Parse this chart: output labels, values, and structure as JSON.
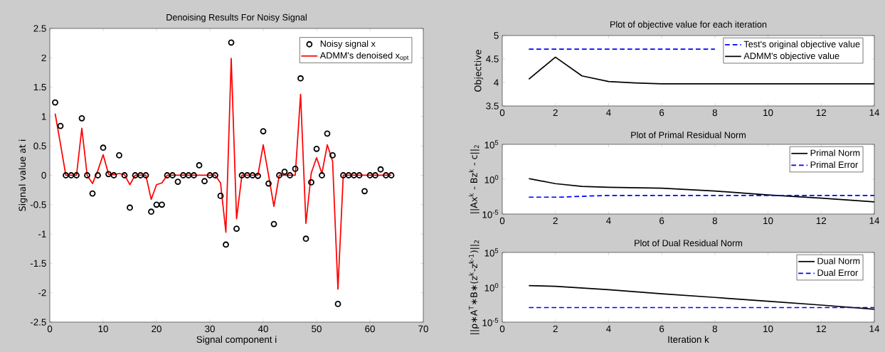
{
  "chart_data": [
    {
      "type": "line",
      "title": "Denoising Results For Noisy Signal",
      "xlabel": "Signal component i",
      "ylabel": "Signal value at i",
      "x": [
        1,
        2,
        3,
        4,
        5,
        6,
        7,
        8,
        9,
        10,
        11,
        12,
        13,
        14,
        15,
        16,
        17,
        18,
        19,
        20,
        21,
        22,
        23,
        24,
        25,
        26,
        27,
        28,
        29,
        30,
        31,
        32,
        33,
        34,
        35,
        36,
        37,
        38,
        39,
        40,
        41,
        42,
        43,
        44,
        45,
        46,
        47,
        48,
        49,
        50,
        51,
        52,
        53,
        54,
        55,
        56,
        57,
        58,
        59,
        60,
        61,
        62,
        63,
        64
      ],
      "series": [
        {
          "name": "Noisy signal x",
          "type": "scatter",
          "marker": "circle",
          "color": "#000000",
          "values": [
            1.24,
            0.84,
            0,
            0,
            0,
            0.97,
            0,
            -0.31,
            0,
            0.47,
            0.02,
            0,
            0.34,
            0,
            -0.55,
            0,
            0,
            0,
            -0.62,
            -0.5,
            -0.5,
            0,
            0,
            -0.11,
            0,
            0,
            0,
            0.17,
            -0.1,
            0,
            0,
            -0.35,
            -1.18,
            2.26,
            -0.91,
            0,
            0,
            0,
            -0.01,
            0.75,
            -0.14,
            -0.83,
            0,
            0.06,
            0,
            0.11,
            1.65,
            -1.08,
            -0.12,
            0.45,
            0,
            0.71,
            0.34,
            -2.19,
            0,
            0,
            0,
            0,
            -0.27,
            0,
            0,
            0.1,
            0,
            0
          ]
        },
        {
          "name": "ADMM's denoised x$_{opt}$",
          "type": "line",
          "marker": "none",
          "color": "#ff0000",
          "values": [
            1.05,
            0.53,
            0,
            0,
            0,
            0.8,
            0,
            -0.14,
            0.08,
            0.35,
            0.02,
            0.01,
            0.03,
            0.01,
            -0.16,
            0,
            0,
            0,
            -0.41,
            -0.16,
            -0.13,
            0,
            0,
            0,
            0,
            0,
            0,
            0,
            0,
            0,
            0,
            -0.13,
            -0.97,
            1.99,
            -0.74,
            0,
            0,
            0,
            0,
            0.52,
            0,
            -0.53,
            0,
            0,
            0,
            0,
            1.38,
            -0.82,
            0.04,
            0.3,
            0.03,
            0.52,
            0.24,
            -1.94,
            0,
            0,
            0,
            0,
            0,
            0,
            0,
            0,
            0,
            0
          ]
        }
      ],
      "xlim": [
        0,
        70
      ],
      "xticks": [
        0,
        10,
        20,
        30,
        40,
        50,
        60,
        70
      ],
      "ylim": [
        -2.5,
        2.5
      ],
      "yticks": [
        -2.5,
        -2,
        -1.5,
        -1,
        -0.5,
        0,
        0.5,
        1,
        1.5,
        2,
        2.5
      ],
      "legend": "top right",
      "grid": false
    },
    {
      "type": "line",
      "title": "Plot of objective value for each iteration",
      "ylabel": "Objective",
      "x": [
        1,
        2,
        3,
        4,
        5,
        6,
        7,
        8,
        9,
        10,
        11,
        12,
        13,
        14
      ],
      "series": [
        {
          "name": "Test's original objective value",
          "color": "#0000ff",
          "line_style": "dashed",
          "values": [
            4.71,
            4.71,
            4.71,
            4.71,
            4.71,
            4.71,
            4.71,
            4.71,
            null,
            null,
            null,
            null,
            null,
            null
          ]
        },
        {
          "name": "ADMM's objective value",
          "color": "#000000",
          "line_style": "solid",
          "values": [
            4.07,
            4.54,
            4.14,
            4.02,
            3.99,
            3.97,
            3.97,
            3.97,
            3.97,
            3.97,
            3.97,
            3.97,
            3.97,
            3.97
          ]
        }
      ],
      "xlim": [
        0,
        14
      ],
      "xticks": [
        0,
        2,
        4,
        6,
        8,
        10,
        12,
        14
      ],
      "ylim": [
        3.5,
        5
      ],
      "yticks": [
        3.5,
        4,
        4.5,
        5
      ],
      "legend": "top right",
      "grid": false
    },
    {
      "type": "line",
      "title": "Plot of Primal Residual Norm",
      "ylabel": "||Ax$^{k}$ - Bz$^{k}$ - c||$_{2}$",
      "x": [
        1,
        2,
        3,
        4,
        6,
        8,
        10,
        12,
        14
      ],
      "series": [
        {
          "name": "Primal Norm",
          "color": "#000000",
          "line_style": "solid",
          "values": [
            1.2,
            0.23,
            0.093,
            0.07,
            0.05,
            0.02,
            0.0056,
            0.0019,
            0.00056
          ]
        },
        {
          "name": "Primal Error",
          "color": "#0000ff",
          "line_style": "dashed",
          "values": [
            0.0025,
            0.0025,
            0.0035,
            0.0047,
            0.0047,
            0.0047,
            0.0047,
            0.0047,
            0.0047
          ]
        }
      ],
      "xlim": [
        0,
        14
      ],
      "xticks": [
        0,
        2,
        4,
        6,
        8,
        10,
        12,
        14
      ],
      "ylim": [
        1e-05,
        100000
      ],
      "yticks": [
        {
          "value": 1e-05,
          "label": "10$^{-5}$"
        },
        {
          "value": 1,
          "label": "10$^{0}$"
        },
        {
          "value": 100000,
          "label": "10$^{5}$"
        }
      ],
      "log": "y",
      "legend": "top right",
      "grid": false
    },
    {
      "type": "line",
      "title": "Plot of Dual Residual Norm",
      "xlabel": "Iteration k",
      "ylabel": "||ρ∗A$^{T}$∗B∗(z$^{k}$-z$^{k-1}$)||$_{2}$",
      "x": [
        1,
        2,
        4,
        6,
        8,
        10,
        12,
        14
      ],
      "series": [
        {
          "name": "Dual Norm",
          "color": "#000000",
          "line_style": "solid",
          "values": [
            1.7,
            1.4,
            0.45,
            0.12,
            0.035,
            0.01,
            0.0028,
            0.0007
          ]
        },
        {
          "name": "Dual Error",
          "color": "#0000ff",
          "line_style": "dashed",
          "values": [
            0.0012,
            0.0012,
            0.0012,
            0.0012,
            0.0012,
            0.0012,
            0.0012,
            0.0012
          ]
        }
      ],
      "xlim": [
        0,
        14
      ],
      "xticks": [
        0,
        2,
        4,
        6,
        8,
        10,
        12,
        14
      ],
      "ylim": [
        1e-05,
        100000
      ],
      "yticks": [
        {
          "value": 1e-05,
          "label": "10$^{-5}$"
        },
        {
          "value": 1,
          "label": "10$^{0}$"
        },
        {
          "value": 100000,
          "label": "10$^{5}$"
        }
      ],
      "log": "y",
      "legend": "top right",
      "grid": false
    }
  ]
}
